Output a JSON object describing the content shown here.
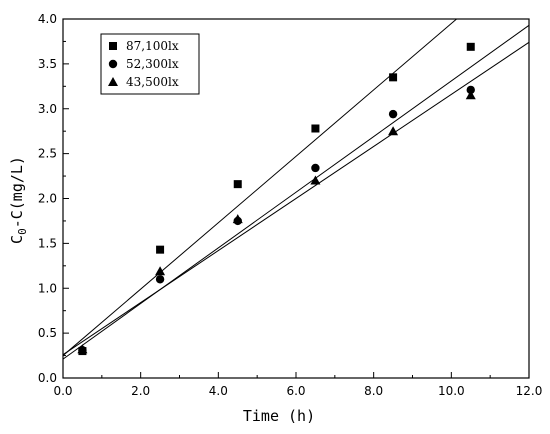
{
  "chart_data": {
    "type": "scatter",
    "title": "",
    "xlabel": "Time (h)",
    "ylabel": "C0-C(mg/L)",
    "ylabel_main": "C",
    "ylabel_sub": "0",
    "ylabel_rest": "-C(mg/L)",
    "xlim": [
      0,
      12
    ],
    "ylim": [
      0,
      4
    ],
    "xticks": [
      "0.0",
      "2.0",
      "4.0",
      "6.0",
      "8.0",
      "10.0",
      "12.0"
    ],
    "yticks": [
      "0.0",
      "0.5",
      "1.0",
      "1.5",
      "2.0",
      "2.5",
      "3.0",
      "3.5",
      "4.0"
    ],
    "grid": false,
    "legend_position": "top-left",
    "series": [
      {
        "name": "87,100lx",
        "marker": "square",
        "x": [
          0.5,
          2.5,
          4.5,
          6.5,
          8.5,
          10.5
        ],
        "y": [
          0.3,
          1.43,
          2.16,
          2.78,
          3.35,
          3.69
        ],
        "fit": {
          "intercept": 0.25,
          "slope": 0.37
        }
      },
      {
        "name": "52,300lx",
        "marker": "circle",
        "x": [
          0.5,
          2.5,
          4.5,
          6.5,
          8.5,
          10.5
        ],
        "y": [
          0.31,
          1.1,
          1.75,
          2.34,
          2.94,
          3.21
        ],
        "fit": {
          "intercept": 0.21,
          "slope": 0.31
        }
      },
      {
        "name": "43,500lx",
        "marker": "triangle",
        "x": [
          0.5,
          2.5,
          4.5,
          6.5,
          8.5,
          10.5
        ],
        "y": [
          0.32,
          1.19,
          1.77,
          2.2,
          2.75,
          3.15
        ],
        "fit": {
          "intercept": 0.26,
          "slope": 0.29
        }
      }
    ]
  }
}
